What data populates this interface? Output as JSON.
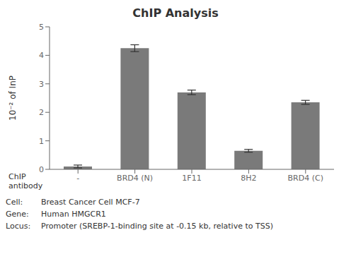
{
  "chart_data": {
    "type": "bar",
    "title": "ChIP Analysis",
    "categories": [
      "-",
      "BRD4 (N)",
      "1F11",
      "8H2",
      "BRD4 (C)"
    ],
    "values": [
      0.1,
      4.25,
      2.7,
      0.65,
      2.35
    ],
    "errors": [
      0.05,
      0.12,
      0.08,
      0.05,
      0.07
    ],
    "color": "#7a7a7a",
    "ylabel": "10⁻² of InP",
    "xlabel": "ChIP\nantibody",
    "ylim": [
      0,
      5
    ],
    "yticks": [
      0,
      1,
      2,
      3,
      4,
      5
    ],
    "grid": false,
    "annotations": [
      [
        "Cell:",
        "Breast Cancer Cell MCF-7"
      ],
      [
        "Gene:",
        "Human HMGCR1"
      ],
      [
        "Locus:",
        "Promoter (SREBP-1-binding site at -0.15 kb, relative to TSS)"
      ]
    ]
  }
}
